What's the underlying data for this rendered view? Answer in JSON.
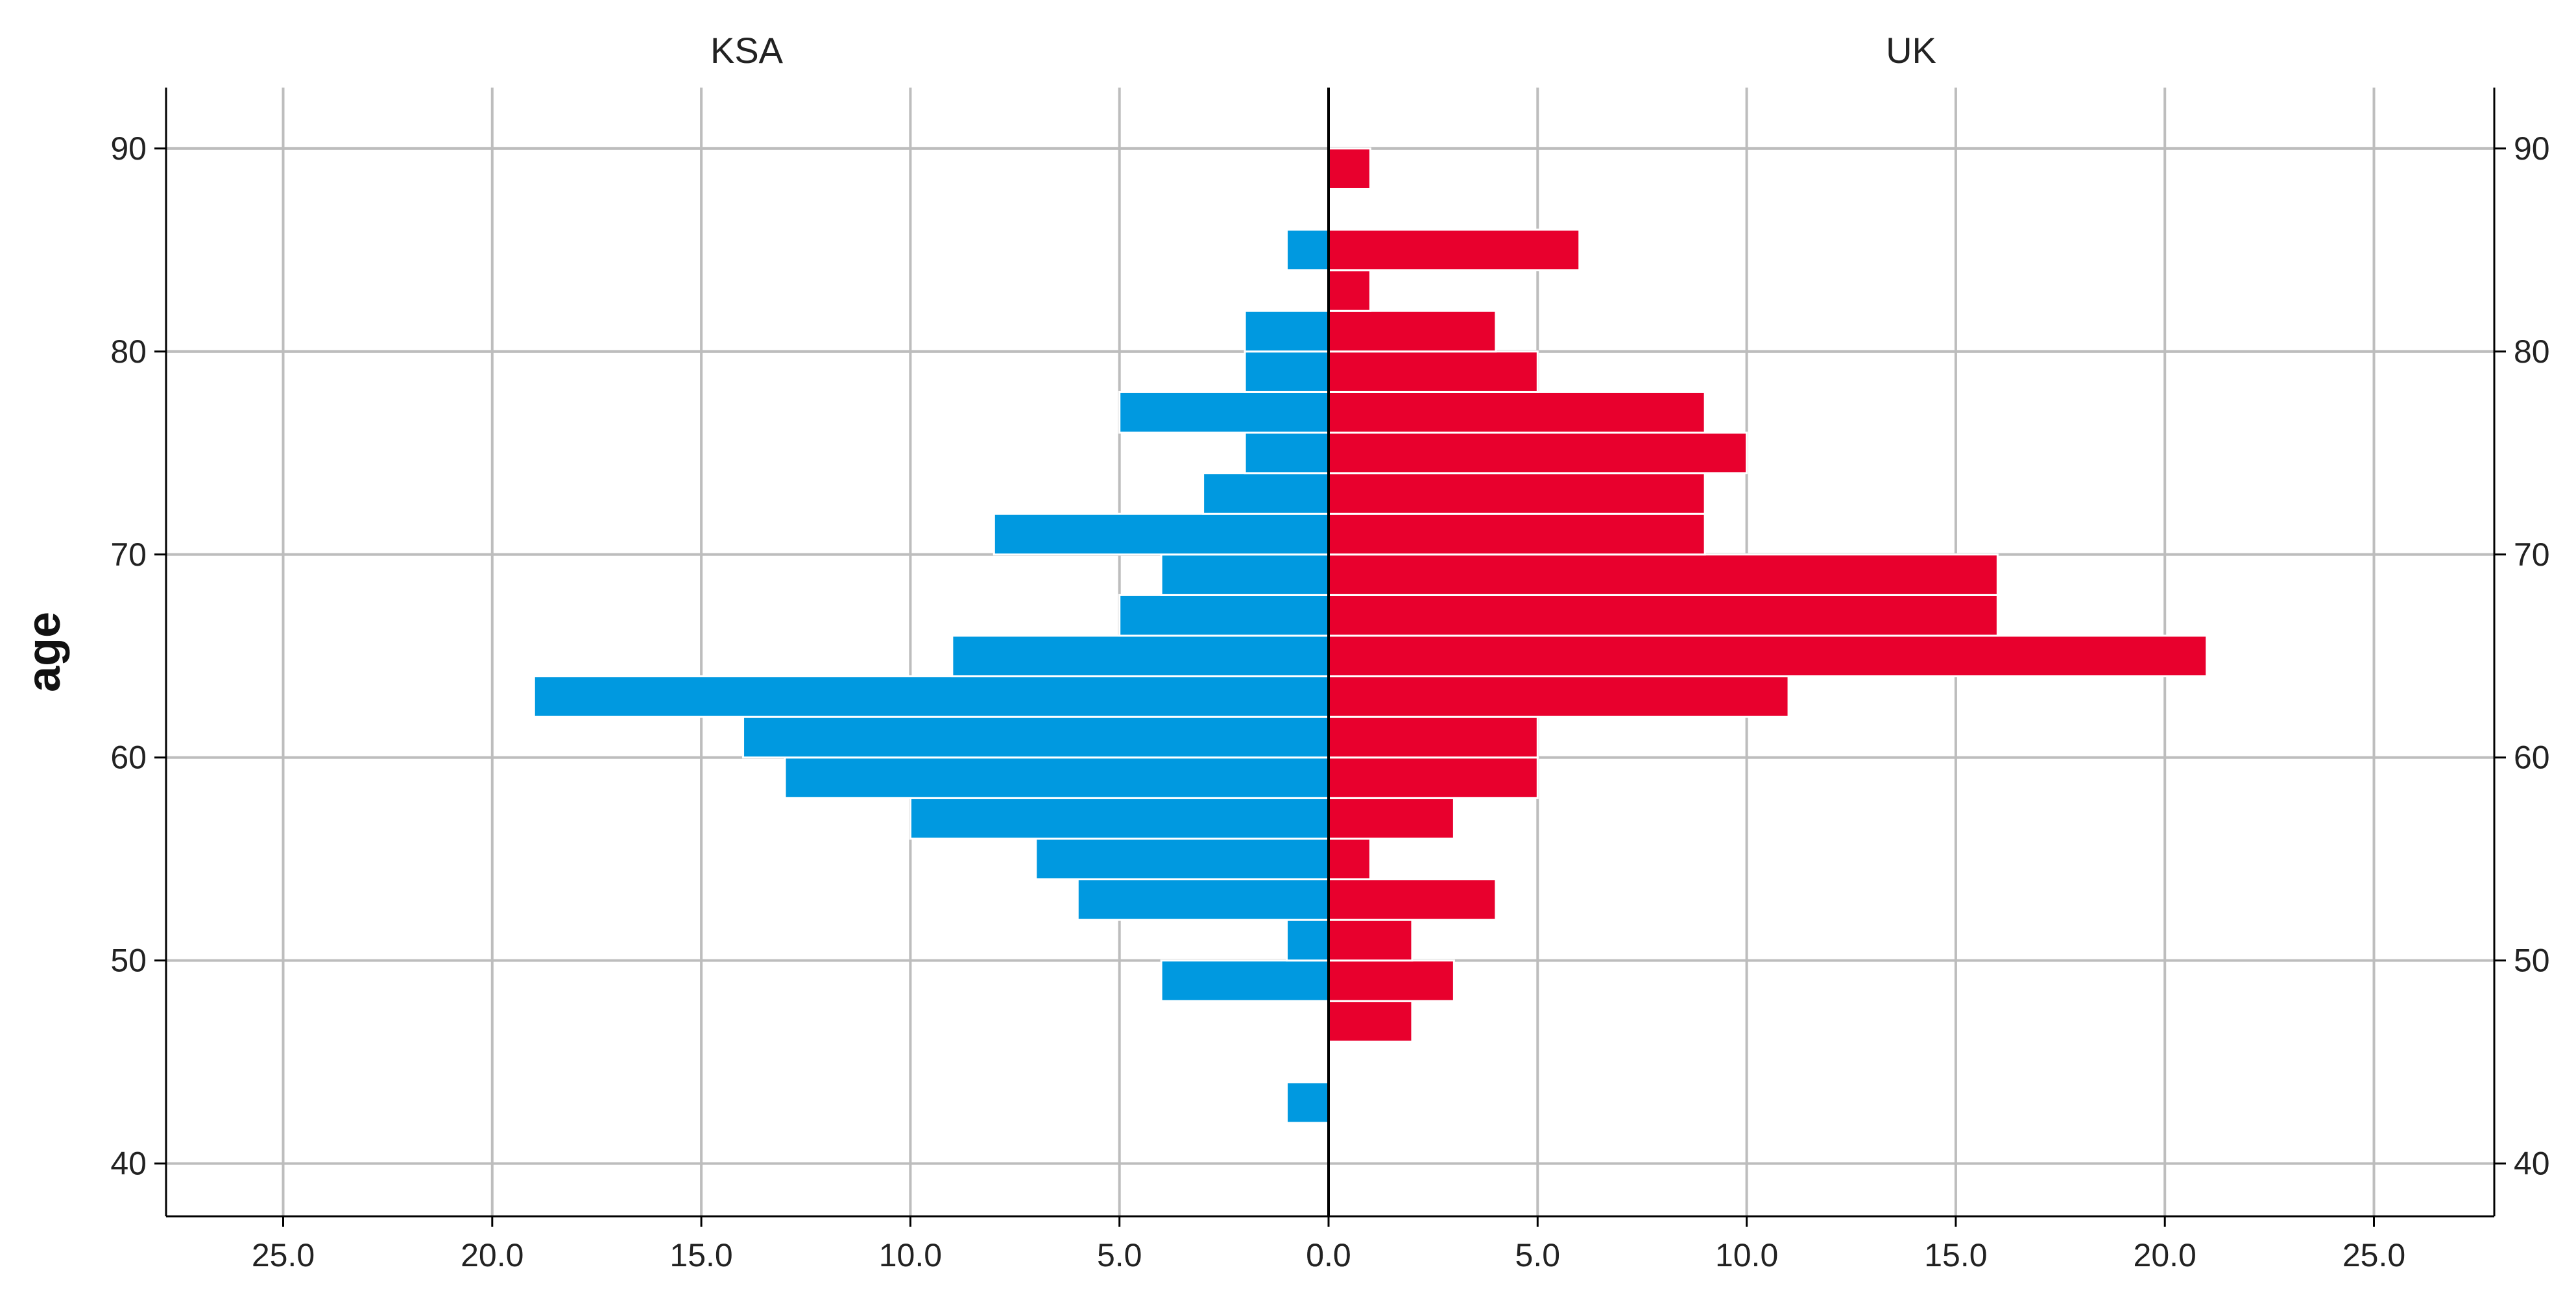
{
  "chart_data": {
    "type": "bar",
    "orientation": "horizontal",
    "layout": "population-pyramid",
    "ylabel": "age",
    "y_ticks": [
      40,
      50,
      60,
      70,
      80,
      90
    ],
    "ylim": [
      37.4,
      93
    ],
    "bin_width": 2,
    "x_tick_values": [
      25,
      20,
      15,
      10,
      5,
      0
    ],
    "x_tick_labels": [
      "25.0",
      "20.0",
      "15.0",
      "10.0",
      "5.0",
      "0.0"
    ],
    "xlim": [
      0,
      27.8
    ],
    "series": [
      {
        "name": "KSA",
        "side": "left",
        "color": "#0099e0",
        "bins": [
          {
            "age": 43,
            "value": 1
          },
          {
            "age": 49,
            "value": 4
          },
          {
            "age": 51,
            "value": 1
          },
          {
            "age": 53,
            "value": 6
          },
          {
            "age": 55,
            "value": 7
          },
          {
            "age": 57,
            "value": 10
          },
          {
            "age": 59,
            "value": 13
          },
          {
            "age": 61,
            "value": 14
          },
          {
            "age": 63,
            "value": 19
          },
          {
            "age": 65,
            "value": 9
          },
          {
            "age": 67,
            "value": 5
          },
          {
            "age": 69,
            "value": 4
          },
          {
            "age": 71,
            "value": 8
          },
          {
            "age": 73,
            "value": 3
          },
          {
            "age": 75,
            "value": 2
          },
          {
            "age": 77,
            "value": 5
          },
          {
            "age": 79,
            "value": 2
          },
          {
            "age": 81,
            "value": 2
          },
          {
            "age": 85,
            "value": 1
          }
        ]
      },
      {
        "name": "UK",
        "side": "right",
        "color": "#e8002d",
        "bins": [
          {
            "age": 47,
            "value": 2
          },
          {
            "age": 49,
            "value": 3
          },
          {
            "age": 51,
            "value": 2
          },
          {
            "age": 53,
            "value": 4
          },
          {
            "age": 55,
            "value": 1
          },
          {
            "age": 57,
            "value": 3
          },
          {
            "age": 59,
            "value": 5
          },
          {
            "age": 61,
            "value": 5
          },
          {
            "age": 63,
            "value": 11
          },
          {
            "age": 65,
            "value": 21
          },
          {
            "age": 67,
            "value": 16
          },
          {
            "age": 69,
            "value": 16
          },
          {
            "age": 71,
            "value": 9
          },
          {
            "age": 73,
            "value": 9
          },
          {
            "age": 75,
            "value": 10
          },
          {
            "age": 77,
            "value": 9
          },
          {
            "age": 79,
            "value": 5
          },
          {
            "age": 81,
            "value": 4
          },
          {
            "age": 83,
            "value": 1
          },
          {
            "age": 85,
            "value": 6
          },
          {
            "age": 89,
            "value": 1
          }
        ]
      }
    ]
  }
}
